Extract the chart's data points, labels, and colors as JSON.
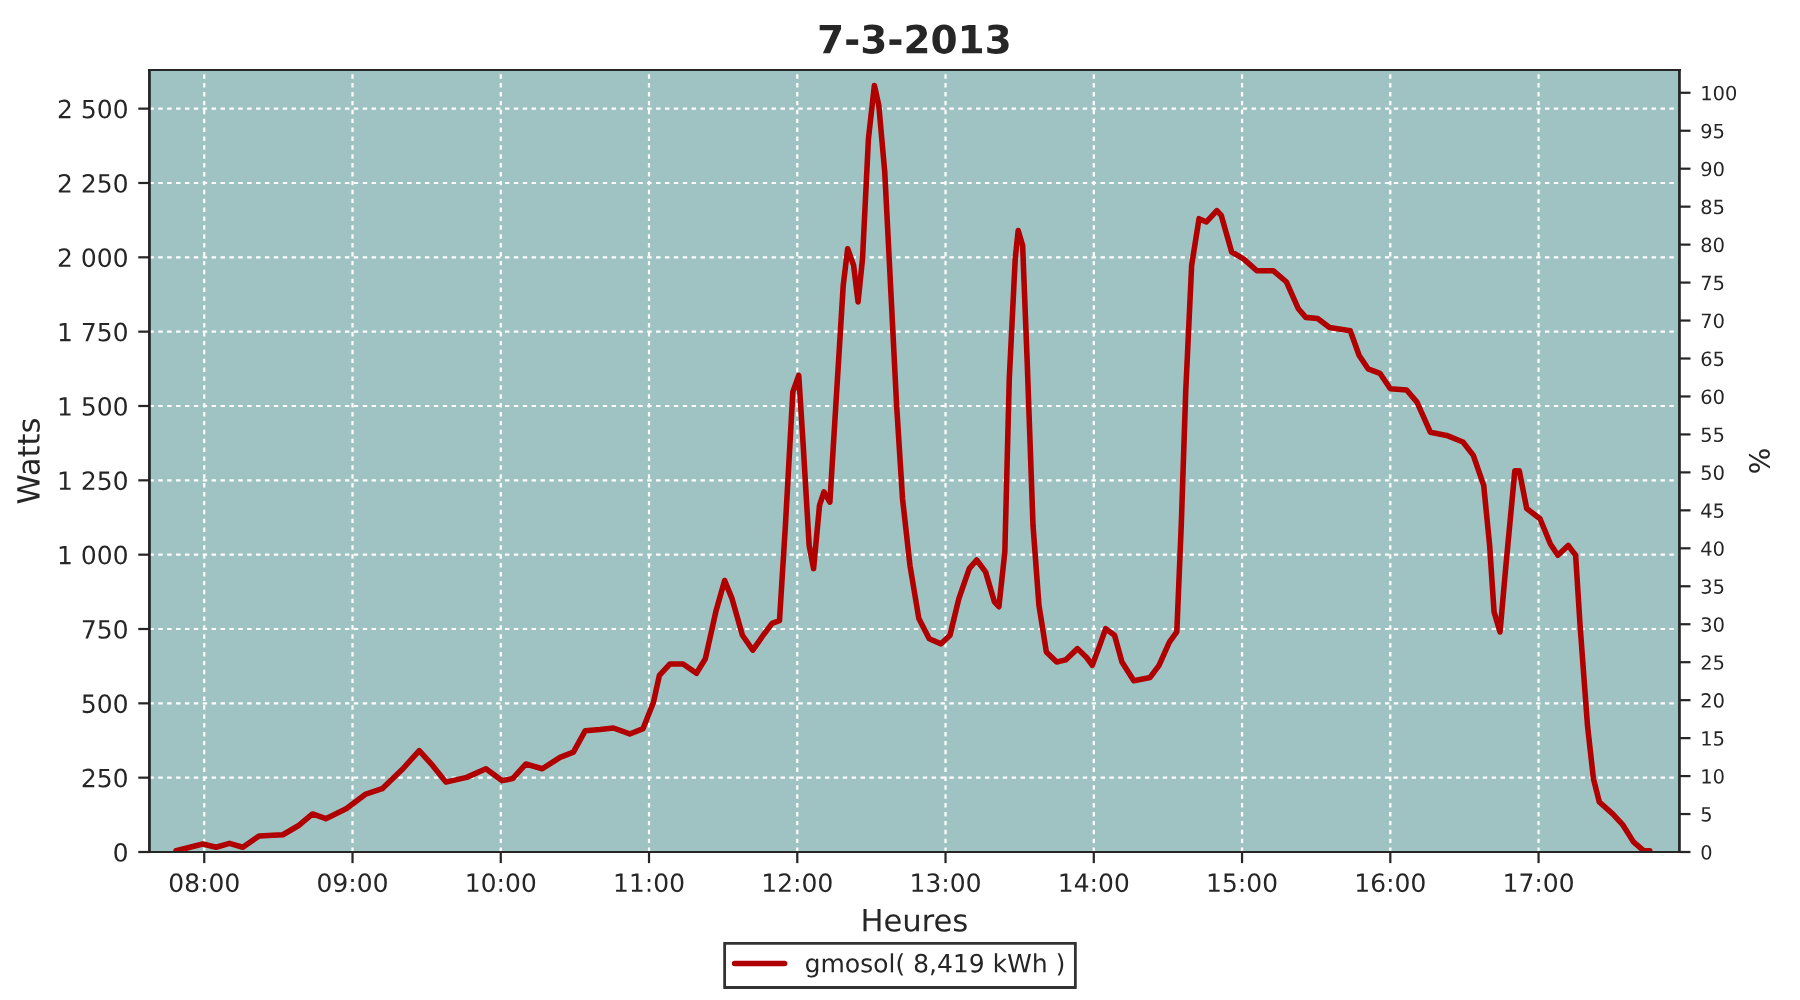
{
  "chart_data": {
    "type": "line",
    "title": "7-3-2013",
    "xlabel": "Heures",
    "ylabel": "Watts",
    "y2label": "%",
    "series": [
      {
        "name": "gmosol( 8,419 kWh )",
        "color": "#b00000",
        "x": [
          7.81,
          7.99,
          8.08,
          8.17,
          8.26,
          8.37,
          8.53,
          8.64,
          8.73,
          8.82,
          8.96,
          9.09,
          9.2,
          9.34,
          9.45,
          9.54,
          9.63,
          9.77,
          9.9,
          10.01,
          10.08,
          10.17,
          10.28,
          10.4,
          10.49,
          10.57,
          10.67,
          10.76,
          10.87,
          10.96,
          11.03,
          11.07,
          11.14,
          11.23,
          11.32,
          11.38,
          11.45,
          11.51,
          11.56,
          11.63,
          11.7,
          11.77,
          11.83,
          11.88,
          11.92,
          11.97,
          12.01,
          12.04,
          12.08,
          12.11,
          12.15,
          12.18,
          12.22,
          12.26,
          12.31,
          12.34,
          12.38,
          12.41,
          12.44,
          12.48,
          12.52,
          12.55,
          12.59,
          12.62,
          12.67,
          12.71,
          12.76,
          12.82,
          12.89,
          12.97,
          13.03,
          13.09,
          13.16,
          13.21,
          13.27,
          13.33,
          13.36,
          13.4,
          13.43,
          13.47,
          13.49,
          13.52,
          13.55,
          13.59,
          13.63,
          13.68,
          13.75,
          13.81,
          13.89,
          13.95,
          13.99,
          14.04,
          14.08,
          14.14,
          14.19,
          14.27,
          14.38,
          14.44,
          14.51,
          14.56,
          14.59,
          14.62,
          14.66,
          14.71,
          14.76,
          14.83,
          14.86,
          14.93,
          15.01,
          15.1,
          15.21,
          15.3,
          15.38,
          15.43,
          15.51,
          15.59,
          15.73,
          15.79,
          15.85,
          15.93,
          16.0,
          16.11,
          16.18,
          16.27,
          16.38,
          16.49,
          16.56,
          16.63,
          16.67,
          16.7,
          16.74,
          16.78,
          16.84,
          16.87,
          16.92,
          17.01,
          17.08,
          17.13,
          17.2,
          17.25,
          17.28,
          17.33,
          17.37,
          17.41,
          17.5,
          17.57,
          17.64,
          17.71,
          17.75
        ],
        "values": [
          4,
          27,
          16,
          29,
          16,
          54,
          58,
          90,
          128,
          112,
          146,
          195,
          213,
          280,
          341,
          291,
          235,
          251,
          280,
          240,
          247,
          296,
          280,
          318,
          336,
          408,
          412,
          417,
          397,
          415,
          504,
          594,
          632,
          632,
          601,
          650,
          807,
          913,
          852,
          729,
          679,
          729,
          769,
          778,
          1099,
          1547,
          1603,
          1368,
          1031,
          953,
          1166,
          1211,
          1177,
          1502,
          1906,
          2029,
          1973,
          1850,
          1995,
          2399,
          2578,
          2511,
          2287,
          1995,
          1502,
          1188,
          964,
          785,
          717,
          700,
          729,
          852,
          953,
          982,
          942,
          841,
          825,
          1009,
          1592,
          1995,
          2090,
          2040,
          1659,
          1099,
          830,
          673,
          639,
          646,
          684,
          655,
          628,
          695,
          751,
          729,
          639,
          576,
          587,
          628,
          706,
          740,
          1099,
          1547,
          1973,
          2130,
          2119,
          2157,
          2141,
          2018,
          1995,
          1955,
          1955,
          1917,
          1827,
          1798,
          1794,
          1764,
          1753,
          1670,
          1625,
          1610,
          1558,
          1554,
          1513,
          1412,
          1401,
          1379,
          1334,
          1233,
          1031,
          807,
          740,
          964,
          1282,
          1282,
          1155,
          1121,
          1036,
          998,
          1031,
          998,
          762,
          426,
          247,
          168,
          128,
          90,
          34,
          4,
          4
        ]
      }
    ],
    "xlim": [
      7.63,
      17.95
    ],
    "xticks": [
      {
        "value": 8,
        "label": "08:00"
      },
      {
        "value": 9,
        "label": "09:00"
      },
      {
        "value": 10,
        "label": "10:00"
      },
      {
        "value": 11,
        "label": "11:00"
      },
      {
        "value": 12,
        "label": "12:00"
      },
      {
        "value": 13,
        "label": "13:00"
      },
      {
        "value": 14,
        "label": "14:00"
      },
      {
        "value": 15,
        "label": "15:00"
      },
      {
        "value": 16,
        "label": "16:00"
      },
      {
        "value": 17,
        "label": "17:00"
      }
    ],
    "ylim": [
      0,
      2630
    ],
    "yticks": [
      0,
      250,
      500,
      750,
      {
        "value": 1000,
        "label": "1 000"
      },
      {
        "value": 1250,
        "label": "1 250"
      },
      {
        "value": 1500,
        "label": "1 500"
      },
      {
        "value": 1750,
        "label": "1 750"
      },
      {
        "value": 2000,
        "label": "2 000"
      },
      {
        "value": 2250,
        "label": "2 250"
      },
      {
        "value": 2500,
        "label": "2 500"
      }
    ],
    "y2lim": [
      0,
      103
    ],
    "y2ticks": [
      0,
      5,
      10,
      15,
      20,
      25,
      30,
      35,
      40,
      45,
      50,
      55,
      60,
      65,
      70,
      75,
      80,
      85,
      90,
      95,
      100
    ],
    "grid": true,
    "legend": "bottom",
    "line_style": "solid",
    "marker": "none"
  }
}
